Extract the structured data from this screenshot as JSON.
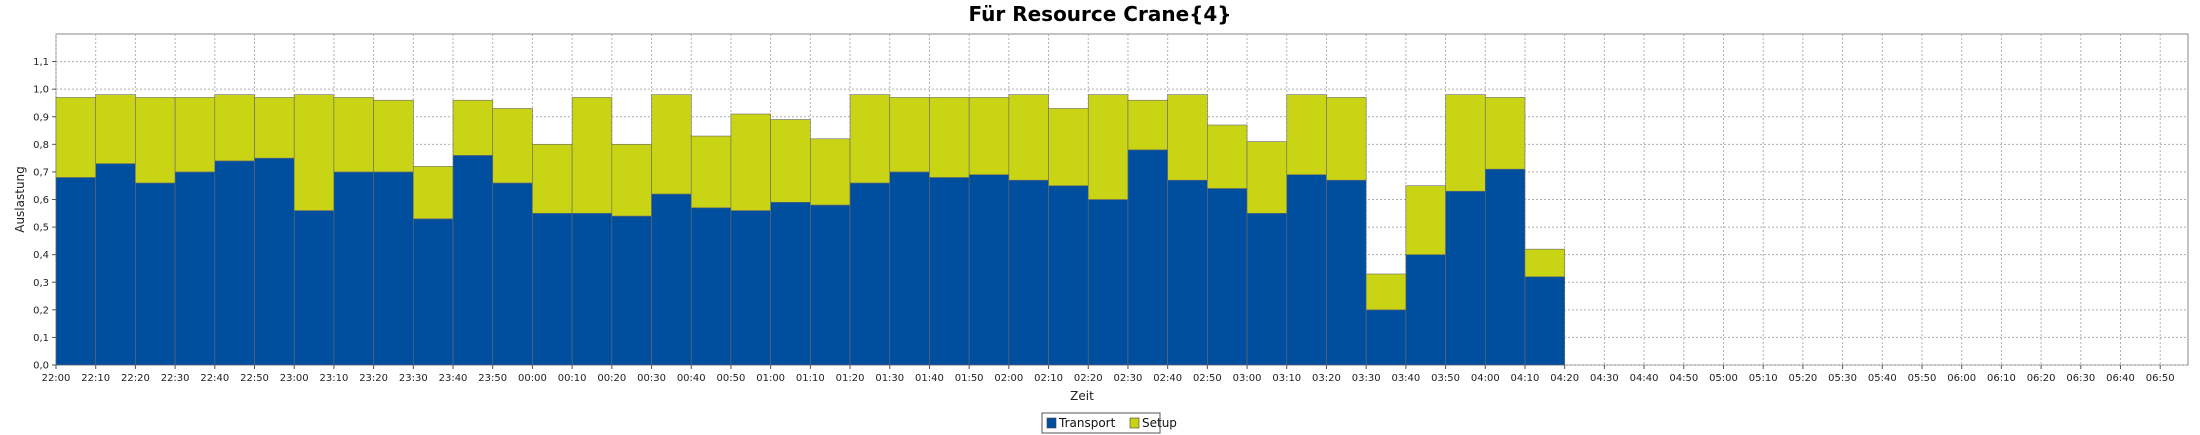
{
  "chart_data": {
    "type": "bar",
    "stacked": true,
    "title": "Für Resource Crane{4}",
    "xlabel": "Zeit",
    "ylabel": "Auslastung",
    "ylim": [
      0,
      1.2
    ],
    "yticks": [
      "0,0",
      "0,1",
      "0,2",
      "0,3",
      "0,4",
      "0,5",
      "0,6",
      "0,7",
      "0,8",
      "0,9",
      "1,0",
      "1,1"
    ],
    "grid": true,
    "legend_position": "bottom-center",
    "x_ticks": [
      "22:00",
      "22:10",
      "22:20",
      "22:30",
      "22:40",
      "22:50",
      "23:00",
      "23:10",
      "23:20",
      "23:30",
      "23:40",
      "23:50",
      "00:00",
      "00:10",
      "00:20",
      "00:30",
      "00:40",
      "00:50",
      "01:00",
      "01:10",
      "01:20",
      "01:30",
      "01:40",
      "01:50",
      "02:00",
      "02:10",
      "02:20",
      "02:30",
      "02:40",
      "02:50",
      "03:00",
      "03:10",
      "03:20",
      "03:30",
      "03:40",
      "03:50",
      "04:00",
      "04:10",
      "04:20",
      "04:30",
      "04:40",
      "04:50",
      "05:00",
      "05:10",
      "05:20",
      "05:30",
      "05:40",
      "05:50",
      "06:00",
      "06:10",
      "06:20",
      "06:30",
      "06:40",
      "06:50"
    ],
    "series": [
      {
        "name": "Transport",
        "color": "#004f9e",
        "values": [
          0.68,
          0.73,
          0.66,
          0.7,
          0.74,
          0.75,
          0.56,
          0.7,
          0.7,
          0.53,
          0.76,
          0.66,
          0.55,
          0.55,
          0.54,
          0.62,
          0.57,
          0.56,
          0.59,
          0.58,
          0.66,
          0.7,
          0.68,
          0.69,
          0.67,
          0.65,
          0.6,
          0.78,
          0.67,
          0.64,
          0.55,
          0.69,
          0.67,
          0.2,
          0.4,
          0.63,
          0.71,
          0.32
        ]
      },
      {
        "name": "Setup",
        "color": "#c8d414",
        "values": [
          0.29,
          0.25,
          0.31,
          0.27,
          0.24,
          0.22,
          0.42,
          0.27,
          0.26,
          0.19,
          0.2,
          0.27,
          0.25,
          0.42,
          0.26,
          0.36,
          0.26,
          0.35,
          0.3,
          0.24,
          0.32,
          0.27,
          0.29,
          0.28,
          0.31,
          0.28,
          0.38,
          0.18,
          0.31,
          0.23,
          0.26,
          0.29,
          0.3,
          0.13,
          0.25,
          0.35,
          0.26,
          0.1
        ]
      }
    ]
  }
}
